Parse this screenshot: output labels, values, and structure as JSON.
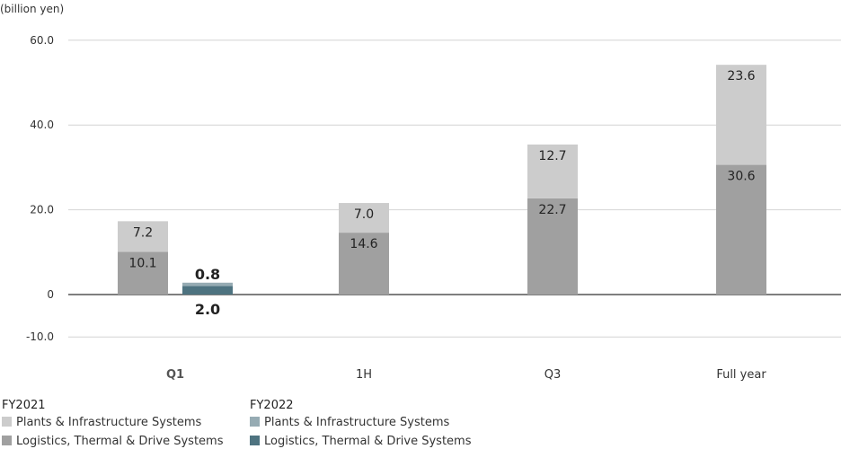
{
  "chart_data": {
    "type": "bar",
    "unit_label": "(billion yen)",
    "y_ticks": [
      60.0,
      40.0,
      20.0,
      0,
      -10.0
    ],
    "y_tick_labels": [
      "60.0",
      "40.0",
      "20.0",
      "0",
      "-10.0"
    ],
    "ylim": [
      -10,
      60
    ],
    "categories": [
      "Q1",
      "1H",
      "Q3",
      "Full year"
    ],
    "highlight_category": "Q1",
    "groups": [
      {
        "name": "FY2021",
        "colors": {
          "Plants & Infrastructure Systems": "#cccccc",
          "Logistics, Thermal & Drive Systems": "#a0a0a0"
        },
        "series": [
          {
            "name": "Logistics, Thermal & Drive Systems",
            "values": [
              10.1,
              14.6,
              22.7,
              30.6
            ],
            "labels": [
              "10.1",
              "14.6",
              "22.7",
              "30.6"
            ]
          },
          {
            "name": "Plants & Infrastructure Systems",
            "values": [
              7.2,
              7.0,
              12.7,
              23.6
            ],
            "labels": [
              "7.2",
              "7.0",
              "12.7",
              "23.6"
            ]
          }
        ]
      },
      {
        "name": "FY2022",
        "colors": {
          "Plants & Infrastructure Systems": "#96abb3",
          "Logistics, Thermal & Drive Systems": "#4e7380"
        },
        "series": [
          {
            "name": "Logistics, Thermal & Drive Systems",
            "values": [
              2.0
            ],
            "labels": [
              "2.0"
            ]
          },
          {
            "name": "Plants & Infrastructure Systems",
            "values": [
              0.8
            ],
            "labels": [
              "0.8"
            ]
          }
        ]
      }
    ],
    "legend": {
      "position": "bottom-left",
      "groups": [
        {
          "title": "FY2021",
          "items": [
            {
              "label": "Plants & Infrastructure Systems",
              "color": "#cccccc"
            },
            {
              "label": "Logistics, Thermal & Drive Systems",
              "color": "#a0a0a0"
            }
          ]
        },
        {
          "title": "FY2022",
          "items": [
            {
              "label": "Plants & Infrastructure Systems",
              "color": "#96abb3"
            },
            {
              "label": "Logistics, Thermal & Drive Systems",
              "color": "#4e7380"
            }
          ]
        }
      ]
    },
    "grid": true
  }
}
